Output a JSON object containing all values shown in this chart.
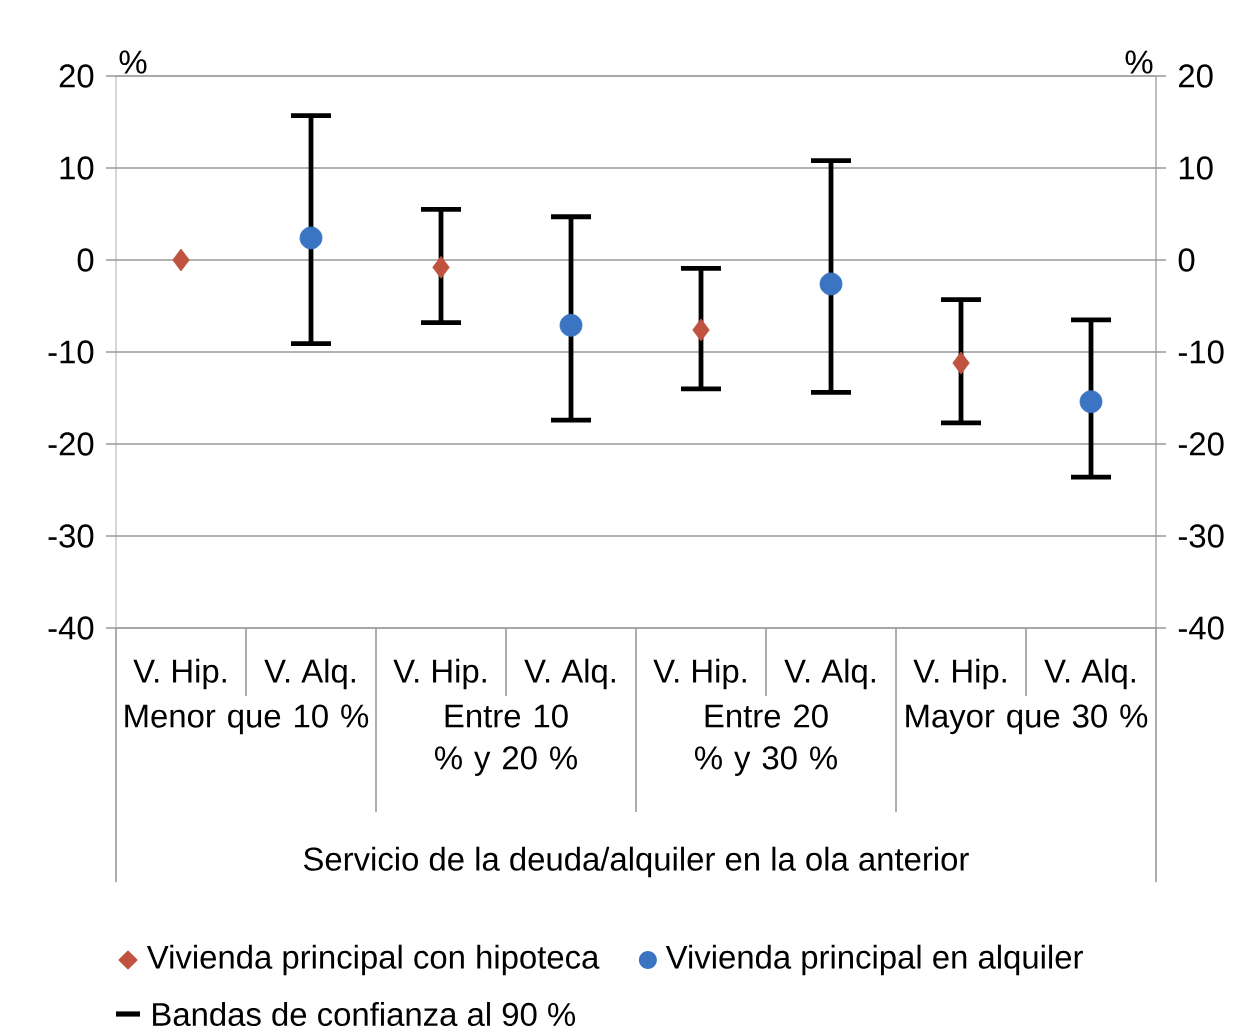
{
  "chart_data": {
    "type": "scatter",
    "categories": [
      "V. Hip.",
      "V. Alq.",
      "V. Hip.",
      "V. Alq.",
      "V. Hip.",
      "V. Alq.",
      "V. Hip.",
      "V. Alq."
    ],
    "xlabel": "Servicio de la deuda/alquiler en la ola anterior",
    "ylabel": "%",
    "y2label": "%",
    "ylim": [
      -40,
      20
    ],
    "yticks": [
      -40,
      -30,
      -20,
      -10,
      0,
      10,
      20
    ],
    "y2lim": [
      -40,
      20
    ],
    "y2ticks": [
      -40,
      -30,
      -20,
      -10,
      0,
      10,
      20
    ],
    "grid": "y",
    "legend": "bottom",
    "annotations": [
      "Menor que 10 %",
      "Entre 10 % y 20 %",
      "Entre 20 % y 30 %",
      "Mayor que 30 %",
      "Bandas de confianza al 90 %"
    ],
    "series": [
      {
        "name": "Vivienda principal con hipoteca",
        "color": "#c0533f",
        "marker": "diamond",
        "values": [
          0,
          null,
          -0.8,
          null,
          -7.6,
          null,
          -11.2,
          null
        ],
        "errors": [
          null,
          null,
          [
            -6.8,
            5.5
          ],
          null,
          [
            -14,
            -0.9
          ],
          null,
          [
            -17.7,
            -4.3
          ],
          null
        ]
      },
      {
        "name": "Vivienda principal en alquiler",
        "color": "#3a74c2",
        "marker": "circle",
        "values": [
          null,
          2.4,
          null,
          -7.1,
          null,
          -2.6,
          null,
          -15.4
        ],
        "errors": [
          null,
          [
            -9.1,
            15.7
          ],
          null,
          [
            -17.4,
            4.7
          ],
          null,
          [
            -14.4,
            10.8
          ],
          null,
          [
            -23.6,
            -6.5
          ]
        ]
      }
    ]
  }
}
